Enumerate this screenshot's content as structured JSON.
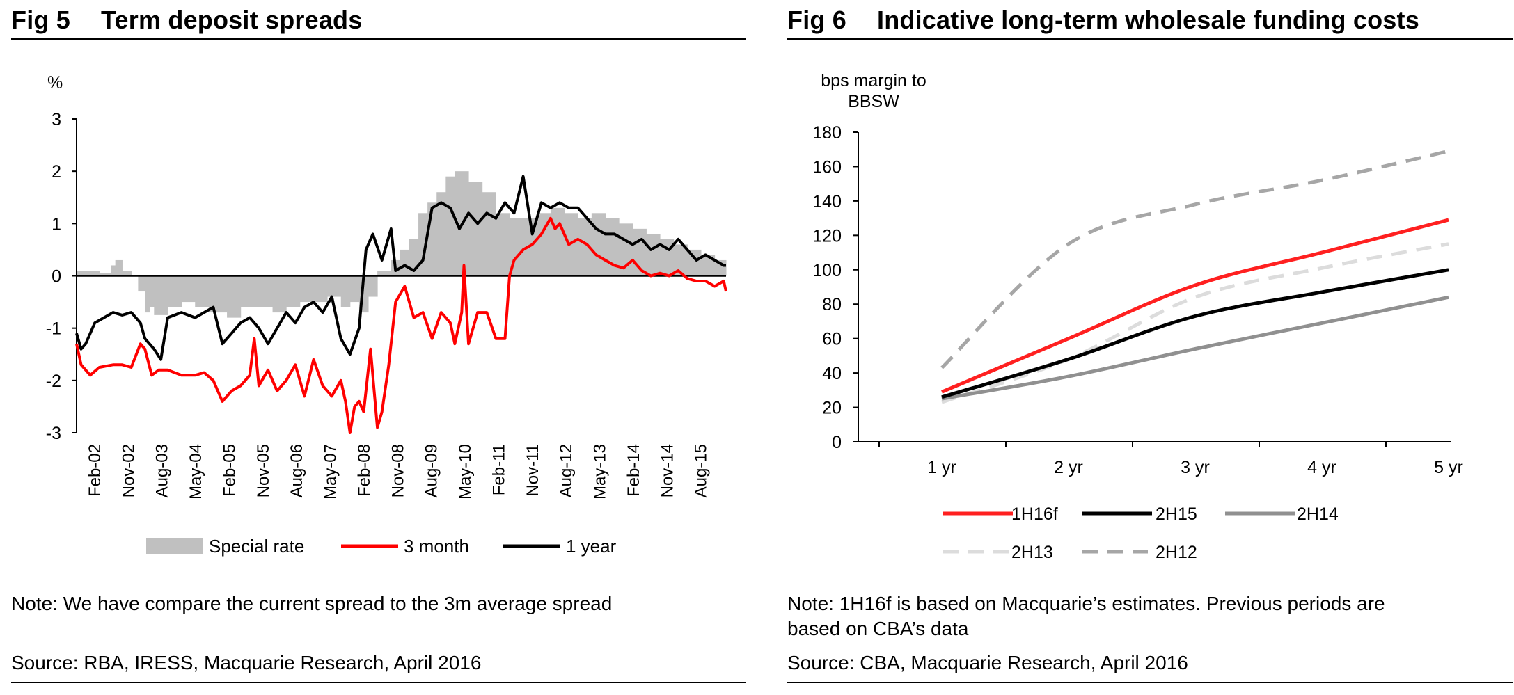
{
  "fig5": {
    "label": "Fig 5",
    "title": "Term deposit spreads",
    "note": "Note: We have compare the current spread to the 3m average spread",
    "source": "Source: RBA, IRESS, Macquarie Research, April 2016",
    "chart_data": {
      "type": "line",
      "title": "Term deposit spreads",
      "ylabel": "%",
      "xlabel": "",
      "ylim": [
        -3,
        3
      ],
      "yticks": [
        3,
        2,
        1,
        0,
        -1,
        -2,
        -3
      ],
      "xlim": [
        2002.0,
        2016.25
      ],
      "xtick_labels": [
        "Feb-02",
        "Nov-02",
        "Aug-03",
        "May-04",
        "Feb-05",
        "Nov-05",
        "Aug-06",
        "May-07",
        "Feb-08",
        "Nov-08",
        "Aug-09",
        "May-10",
        "Feb-11",
        "Nov-11",
        "Aug-12",
        "May-13",
        "Feb-14",
        "Nov-14",
        "Aug-15"
      ],
      "legend": [
        "Special rate",
        "3 month",
        "1 year"
      ],
      "series": [
        {
          "name": "Special rate",
          "kind": "bar",
          "color": "#c0c0c0",
          "x": [
            2002.0,
            2002.5,
            2002.75,
            2002.85,
            2003.0,
            2003.2,
            2003.35,
            2003.5,
            2003.6,
            2003.7,
            2004.0,
            2004.3,
            2004.6,
            2004.9,
            2005.1,
            2005.3,
            2005.6,
            2006.0,
            2006.3,
            2006.6,
            2006.9,
            2007.2,
            2007.5,
            2007.8,
            2008.0,
            2008.2,
            2008.4,
            2008.6,
            2008.9,
            2009.1,
            2009.3,
            2009.5,
            2009.7,
            2009.9,
            2010.1,
            2010.3,
            2010.6,
            2010.9,
            2011.2,
            2011.5,
            2011.8,
            2012.1,
            2012.4,
            2012.7,
            2013.0,
            2013.3,
            2013.6,
            2013.9,
            2014.2,
            2014.5,
            2014.8,
            2015.1,
            2015.4,
            2015.7,
            2016.0,
            2016.25
          ],
          "y": [
            0.1,
            0.05,
            0.2,
            0.3,
            0.1,
            0.0,
            -0.3,
            -0.7,
            -0.6,
            -0.75,
            -0.6,
            -0.5,
            -0.6,
            -0.7,
            -0.7,
            -0.8,
            -0.6,
            -0.6,
            -0.7,
            -0.6,
            -0.5,
            -0.5,
            -0.4,
            -0.6,
            -0.5,
            -0.7,
            -0.4,
            0.1,
            0.3,
            0.5,
            0.7,
            1.2,
            1.4,
            1.6,
            1.9,
            2.0,
            1.8,
            1.6,
            1.2,
            1.1,
            1.1,
            1.2,
            1.3,
            1.2,
            1.1,
            1.2,
            1.1,
            1.0,
            0.9,
            0.8,
            0.7,
            0.6,
            0.5,
            0.4,
            0.3,
            0.2
          ]
        },
        {
          "name": "3 month",
          "kind": "line",
          "color": "#ff0000",
          "x": [
            2002.0,
            2002.1,
            2002.3,
            2002.5,
            2002.8,
            2003.0,
            2003.2,
            2003.4,
            2003.5,
            2003.65,
            2003.8,
            2004.0,
            2004.3,
            2004.6,
            2004.8,
            2005.0,
            2005.2,
            2005.4,
            2005.6,
            2005.8,
            2005.9,
            2006.0,
            2006.2,
            2006.4,
            2006.6,
            2006.8,
            2007.0,
            2007.2,
            2007.4,
            2007.6,
            2007.8,
            2007.9,
            2008.0,
            2008.1,
            2008.2,
            2008.3,
            2008.45,
            2008.6,
            2008.7,
            2008.85,
            2009.0,
            2009.2,
            2009.4,
            2009.6,
            2009.8,
            2010.0,
            2010.2,
            2010.3,
            2010.45,
            2010.5,
            2010.6,
            2010.8,
            2011.0,
            2011.2,
            2011.4,
            2011.5,
            2011.6,
            2011.8,
            2012.0,
            2012.2,
            2012.4,
            2012.5,
            2012.6,
            2012.8,
            2013.0,
            2013.2,
            2013.4,
            2013.6,
            2013.8,
            2014.0,
            2014.2,
            2014.4,
            2014.6,
            2014.8,
            2015.0,
            2015.2,
            2015.4,
            2015.6,
            2015.8,
            2016.0,
            2016.2,
            2016.25
          ],
          "y": [
            -1.3,
            -1.7,
            -1.9,
            -1.75,
            -1.7,
            -1.7,
            -1.75,
            -1.3,
            -1.4,
            -1.9,
            -1.8,
            -1.8,
            -1.9,
            -1.9,
            -1.85,
            -2.0,
            -2.4,
            -2.2,
            -2.1,
            -1.9,
            -1.2,
            -2.1,
            -1.8,
            -2.2,
            -2.0,
            -1.7,
            -2.3,
            -1.6,
            -2.1,
            -2.3,
            -2.0,
            -2.4,
            -3.0,
            -2.5,
            -2.4,
            -2.6,
            -1.4,
            -2.9,
            -2.6,
            -1.7,
            -0.5,
            -0.2,
            -0.8,
            -0.7,
            -1.2,
            -0.7,
            -0.9,
            -1.3,
            -0.7,
            0.2,
            -1.3,
            -0.7,
            -0.7,
            -1.2,
            -1.2,
            0.0,
            0.3,
            0.5,
            0.6,
            0.8,
            1.1,
            0.9,
            1.0,
            0.6,
            0.7,
            0.6,
            0.4,
            0.3,
            0.2,
            0.15,
            0.3,
            0.1,
            0.0,
            0.05,
            0.0,
            0.1,
            -0.05,
            -0.1,
            -0.1,
            -0.2,
            -0.1,
            -0.3
          ]
        },
        {
          "name": "1 year",
          "kind": "line",
          "color": "#000000",
          "x": [
            2002.0,
            2002.1,
            2002.2,
            2002.4,
            2002.6,
            2002.8,
            2003.0,
            2003.2,
            2003.4,
            2003.5,
            2003.7,
            2003.85,
            2004.0,
            2004.3,
            2004.6,
            2004.8,
            2005.0,
            2005.2,
            2005.4,
            2005.6,
            2005.8,
            2006.0,
            2006.2,
            2006.4,
            2006.6,
            2006.8,
            2007.0,
            2007.2,
            2007.4,
            2007.6,
            2007.8,
            2008.0,
            2008.2,
            2008.35,
            2008.5,
            2008.7,
            2008.9,
            2009.0,
            2009.2,
            2009.4,
            2009.6,
            2009.8,
            2010.0,
            2010.2,
            2010.4,
            2010.6,
            2010.8,
            2011.0,
            2011.2,
            2011.4,
            2011.6,
            2011.8,
            2012.0,
            2012.2,
            2012.4,
            2012.6,
            2012.8,
            2013.0,
            2013.2,
            2013.4,
            2013.6,
            2013.8,
            2014.0,
            2014.2,
            2014.4,
            2014.6,
            2014.8,
            2015.0,
            2015.2,
            2015.4,
            2015.6,
            2015.8,
            2016.0,
            2016.2,
            2016.25
          ],
          "y": [
            -1.1,
            -1.4,
            -1.3,
            -0.9,
            -0.8,
            -0.7,
            -0.75,
            -0.7,
            -0.9,
            -1.2,
            -1.4,
            -1.6,
            -0.8,
            -0.7,
            -0.8,
            -0.7,
            -0.6,
            -1.3,
            -1.1,
            -0.9,
            -0.8,
            -1.0,
            -1.3,
            -1.0,
            -0.7,
            -0.9,
            -0.6,
            -0.5,
            -0.7,
            -0.4,
            -1.2,
            -1.5,
            -1.0,
            0.5,
            0.8,
            0.3,
            0.9,
            0.1,
            0.2,
            0.1,
            0.3,
            1.3,
            1.4,
            1.3,
            0.9,
            1.2,
            1.0,
            1.2,
            1.1,
            1.4,
            1.2,
            1.9,
            0.8,
            1.4,
            1.3,
            1.4,
            1.3,
            1.3,
            1.1,
            0.9,
            0.8,
            0.8,
            0.7,
            0.6,
            0.7,
            0.5,
            0.6,
            0.5,
            0.7,
            0.5,
            0.3,
            0.4,
            0.3,
            0.2,
            0.2
          ]
        }
      ]
    }
  },
  "fig6": {
    "label": "Fig 6",
    "title": "Indicative long-term wholesale funding costs",
    "note_line1": "Note: 1H16f is based on Macquarie’s estimates. Previous periods are",
    "note_line2": "based on CBA’s data",
    "source": "Source: CBA, Macquarie Research, April 2016",
    "chart_data": {
      "type": "line",
      "title": "Indicative long-term wholesale funding costs",
      "ylabel_line1": "bps margin to",
      "ylabel_line2": "BBSW",
      "xlabel": "",
      "ylim": [
        0,
        180
      ],
      "yticks": [
        180,
        160,
        140,
        120,
        100,
        80,
        60,
        40,
        20,
        0
      ],
      "categories": [
        "1 yr",
        "2 yr",
        "3 yr",
        "4 yr",
        "5 yr"
      ],
      "series": [
        {
          "name": "1H16f",
          "color": "#ff2020",
          "dash": "solid",
          "values": [
            29,
            60,
            91,
            110,
            129
          ]
        },
        {
          "name": "2H15",
          "color": "#000000",
          "dash": "solid",
          "values": [
            26,
            48,
            73,
            87,
            100
          ]
        },
        {
          "name": "2H14",
          "color": "#909090",
          "dash": "solid",
          "values": [
            25,
            38,
            54,
            69,
            84
          ]
        },
        {
          "name": "2H13",
          "color": "#dcdcdc",
          "dash": "dashed",
          "values": [
            23,
            48,
            84,
            101,
            115
          ]
        },
        {
          "name": "2H12",
          "color": "#a6a6a6",
          "dash": "dashed",
          "values": [
            43,
            115,
            138,
            152,
            169
          ]
        }
      ]
    }
  }
}
